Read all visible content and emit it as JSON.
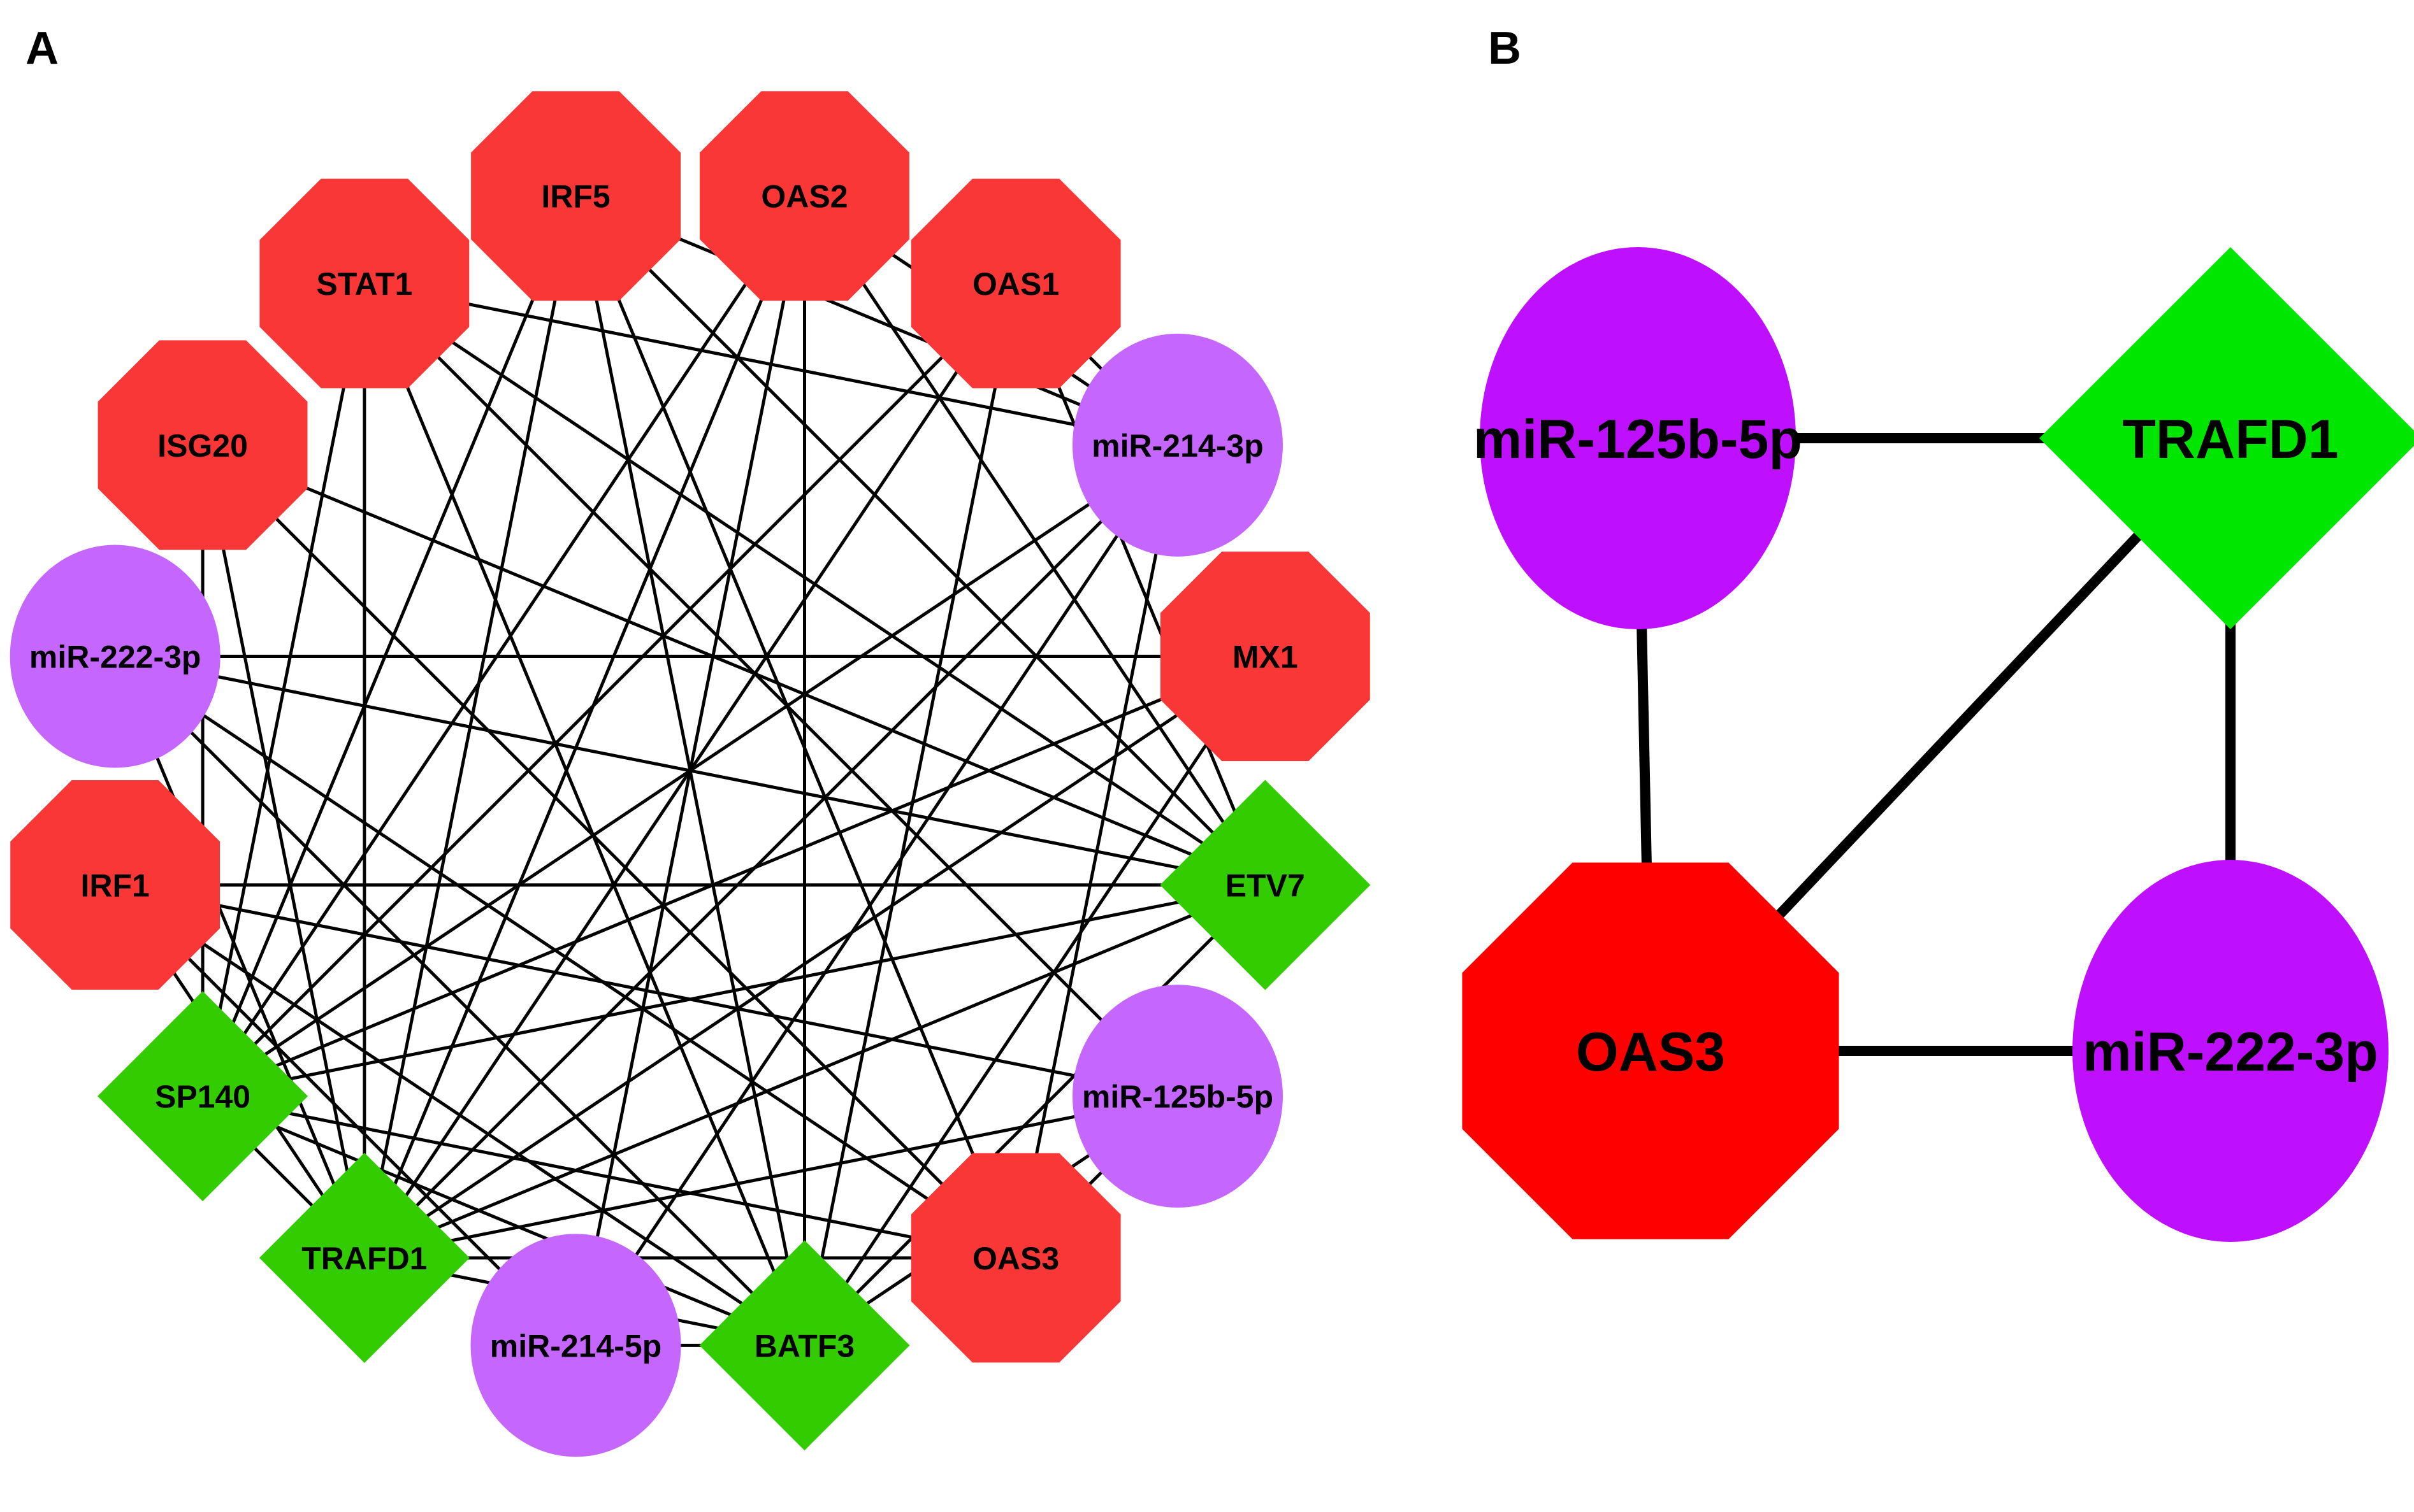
{
  "colors": {
    "gene_a": "#fa3737",
    "tf_a": "#33cc00",
    "mirna_a": "#c566ff",
    "gene_b": "#ff0000",
    "tf_b": "#00e600",
    "mirna_b": "#bf0fff",
    "edge": "#000000"
  },
  "panel_a": {
    "label": "A",
    "nodes": [
      {
        "id": "OAS2",
        "type": "gene"
      },
      {
        "id": "OAS1",
        "type": "gene"
      },
      {
        "id": "miR-214-3p",
        "type": "mirna"
      },
      {
        "id": "MX1",
        "type": "gene"
      },
      {
        "id": "ETV7",
        "type": "tf"
      },
      {
        "id": "miR-125b-5p",
        "type": "mirna"
      },
      {
        "id": "OAS3",
        "type": "gene"
      },
      {
        "id": "BATF3",
        "type": "tf"
      },
      {
        "id": "miR-214-5p",
        "type": "mirna"
      },
      {
        "id": "TRAFD1",
        "type": "tf"
      },
      {
        "id": "SP140",
        "type": "tf"
      },
      {
        "id": "IRF1",
        "type": "gene"
      },
      {
        "id": "miR-222-3p",
        "type": "mirna"
      },
      {
        "id": "ISG20",
        "type": "gene"
      },
      {
        "id": "STAT1",
        "type": "gene"
      },
      {
        "id": "IRF5",
        "type": "gene"
      }
    ],
    "edges": [
      [
        "STAT1",
        "miR-214-3p"
      ],
      [
        "STAT1",
        "ETV7"
      ],
      [
        "STAT1",
        "SP140"
      ],
      [
        "STAT1",
        "TRAFD1"
      ],
      [
        "STAT1",
        "BATF3"
      ],
      [
        "IRF5",
        "ETV7"
      ],
      [
        "IRF5",
        "SP140"
      ],
      [
        "IRF5",
        "TRAFD1"
      ],
      [
        "IRF5",
        "BATF3"
      ],
      [
        "IRF5",
        "miR-214-3p"
      ],
      [
        "OAS2",
        "ETV7"
      ],
      [
        "OAS2",
        "SP140"
      ],
      [
        "OAS2",
        "TRAFD1"
      ],
      [
        "OAS2",
        "BATF3"
      ],
      [
        "OAS2",
        "miR-214-3p"
      ],
      [
        "OAS2",
        "miR-214-5p"
      ],
      [
        "OAS1",
        "SP140"
      ],
      [
        "OAS1",
        "TRAFD1"
      ],
      [
        "OAS1",
        "BATF3"
      ],
      [
        "OAS1",
        "miR-214-3p"
      ],
      [
        "ISG20",
        "ETV7"
      ],
      [
        "ISG20",
        "SP140"
      ],
      [
        "ISG20",
        "TRAFD1"
      ],
      [
        "MX1",
        "miR-222-3p"
      ],
      [
        "MX1",
        "SP140"
      ],
      [
        "MX1",
        "TRAFD1"
      ],
      [
        "MX1",
        "BATF3"
      ],
      [
        "IRF1",
        "ETV7"
      ],
      [
        "IRF1",
        "miR-125b-5p"
      ],
      [
        "IRF1",
        "TRAFD1"
      ],
      [
        "IRF1",
        "BATF3"
      ],
      [
        "IRF1",
        "miR-214-5p"
      ],
      [
        "OAS3",
        "SP140"
      ],
      [
        "OAS3",
        "TRAFD1"
      ],
      [
        "OAS3",
        "miR-125b-5p"
      ],
      [
        "OAS3",
        "miR-222-3p"
      ],
      [
        "OAS3",
        "miR-214-3p"
      ],
      [
        "OAS3",
        "ISG20"
      ],
      [
        "miR-222-3p",
        "ETV7"
      ],
      [
        "miR-222-3p",
        "TRAFD1"
      ],
      [
        "miR-222-3p",
        "BATF3"
      ],
      [
        "miR-214-3p",
        "miR-214-5p"
      ],
      [
        "miR-214-3p",
        "TRAFD1"
      ],
      [
        "miR-214-3p",
        "SP140"
      ],
      [
        "miR-125b-5p",
        "TRAFD1"
      ],
      [
        "miR-125b-5p",
        "BATF3"
      ],
      [
        "ETV7",
        "SP140"
      ],
      [
        "ETV7",
        "TRAFD1"
      ],
      [
        "ETV7",
        "BATF3"
      ],
      [
        "SP140",
        "TRAFD1"
      ],
      [
        "SP140",
        "BATF3"
      ],
      [
        "TRAFD1",
        "BATF3"
      ],
      [
        "miR-214-5p",
        "BATF3"
      ],
      [
        "OAS1",
        "ETV7"
      ],
      [
        "IRF5",
        "OAS3"
      ],
      [
        "STAT1",
        "miR-125b-5p"
      ]
    ]
  },
  "panel_b": {
    "label": "B",
    "nodes": [
      {
        "id": "miR-125b-5p",
        "type": "mirna"
      },
      {
        "id": "TRAFD1",
        "type": "tf"
      },
      {
        "id": "OAS3",
        "type": "gene"
      },
      {
        "id": "miR-222-3p",
        "type": "mirna"
      }
    ],
    "edges": [
      [
        "miR-125b-5p",
        "TRAFD1"
      ],
      [
        "miR-125b-5p",
        "OAS3"
      ],
      [
        "OAS3",
        "TRAFD1"
      ],
      [
        "OAS3",
        "miR-222-3p"
      ],
      [
        "TRAFD1",
        "miR-222-3p"
      ]
    ]
  }
}
